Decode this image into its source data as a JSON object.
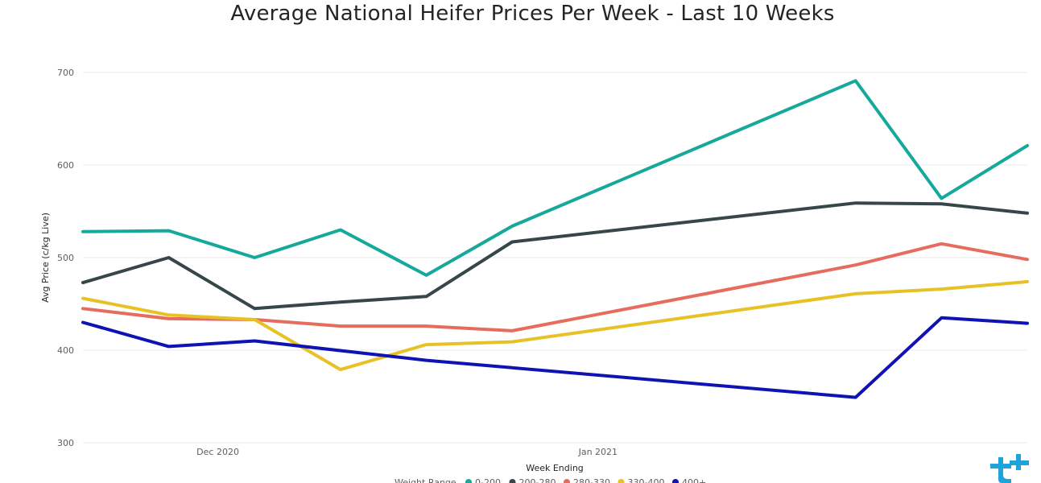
{
  "chart_data": {
    "type": "line",
    "title": "Average National Heifer Prices Per Week - Last 10 Weeks",
    "xlabel": "Week Ending",
    "ylabel": "Avg Price (c/kg Live)",
    "ylim": [
      300,
      700
    ],
    "yticks": [
      300,
      400,
      500,
      600,
      700
    ],
    "x_dates": [
      "2020-11-21",
      "2020-11-28",
      "2020-12-05",
      "2020-12-12",
      "2020-12-19",
      "2020-12-26",
      "2021-01-02",
      "2021-01-09",
      "2021-01-16",
      "2021-01-23",
      "2021-01-30",
      "2021-02-06"
    ],
    "x_range": [
      "2020-11-20",
      "2021-02-05"
    ],
    "xtick_labels": [
      {
        "date": "2020-12-01",
        "label": "Dec 2020"
      },
      {
        "date": "2021-01-01",
        "label": "Jan 2021"
      }
    ],
    "grid": true,
    "legend_position": "bottom",
    "legend_title": "Weight Range",
    "series": [
      {
        "name": "0-200",
        "color": "#17a89c",
        "points": [
          [
            "2020-11-20",
            528
          ],
          [
            "2020-11-27",
            529
          ],
          [
            "2020-12-04",
            500
          ],
          [
            "2020-12-11",
            530
          ],
          [
            "2020-12-18",
            481
          ],
          [
            "2020-12-25",
            534
          ],
          [
            "2021-01-22",
            691
          ],
          [
            "2021-01-29",
            564
          ],
          [
            "2021-02-05",
            621
          ]
        ]
      },
      {
        "name": "200-280",
        "color": "#374649",
        "points": [
          [
            "2020-11-20",
            473
          ],
          [
            "2020-11-27",
            500
          ],
          [
            "2020-12-04",
            445
          ],
          [
            "2020-12-11",
            452
          ],
          [
            "2020-12-18",
            458
          ],
          [
            "2020-12-25",
            517
          ],
          [
            "2021-01-22",
            559
          ],
          [
            "2021-01-29",
            558
          ],
          [
            "2021-02-05",
            548
          ]
        ]
      },
      {
        "name": "280-330",
        "color": "#e66c5f",
        "points": [
          [
            "2020-11-20",
            445
          ],
          [
            "2020-11-27",
            434
          ],
          [
            "2020-12-04",
            433
          ],
          [
            "2020-12-11",
            426
          ],
          [
            "2020-12-18",
            426
          ],
          [
            "2020-12-25",
            421
          ],
          [
            "2021-01-22",
            492
          ],
          [
            "2021-01-29",
            515
          ],
          [
            "2021-02-05",
            498
          ]
        ]
      },
      {
        "name": "330-400",
        "color": "#e8c125",
        "points": [
          [
            "2020-11-20",
            456
          ],
          [
            "2020-11-27",
            438
          ],
          [
            "2020-12-04",
            433
          ],
          [
            "2020-12-11",
            379
          ],
          [
            "2020-12-18",
            406
          ],
          [
            "2020-12-25",
            409
          ],
          [
            "2021-01-22",
            461
          ],
          [
            "2021-01-29",
            466
          ],
          [
            "2021-02-05",
            474
          ]
        ]
      },
      {
        "name": "400+",
        "color": "#0f13b3",
        "points": [
          [
            "2020-11-20",
            430
          ],
          [
            "2020-11-27",
            404
          ],
          [
            "2020-12-04",
            410
          ],
          [
            "2020-12-18",
            389
          ],
          [
            "2021-01-22",
            349
          ],
          [
            "2021-01-29",
            435
          ],
          [
            "2021-02-05",
            429
          ]
        ]
      }
    ]
  },
  "logo": {
    "icon": "tt-logo-icon",
    "color": "#1fa3dc"
  }
}
